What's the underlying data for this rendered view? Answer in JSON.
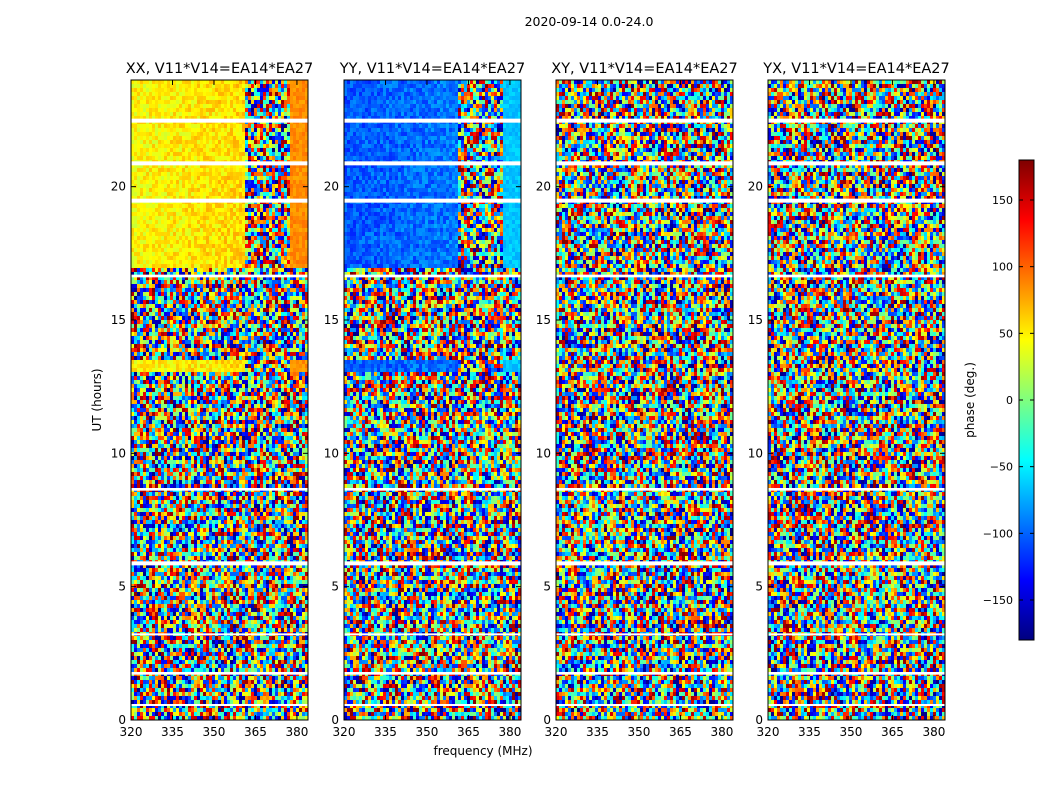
{
  "figure": {
    "suptitle": "2020-09-14 0.0-24.0"
  },
  "colors": {
    "blank": "#ffffff",
    "axis": "#000000",
    "colormap": [
      "#00007f",
      "#0000ff",
      "#007fff",
      "#00ffff",
      "#7fff7f",
      "#ffff00",
      "#ff7f00",
      "#ff0000",
      "#7f0000"
    ]
  },
  "chart_data": {
    "type": "heatmap",
    "xlabel": "frequency (MHz)",
    "ylabel": "UT (hours)",
    "xlim": [
      320,
      384
    ],
    "ylim": [
      0,
      24
    ],
    "x_ticks": [
      320,
      335,
      350,
      365,
      380
    ],
    "x_tick_labels": [
      "320",
      "335",
      "350",
      "365",
      "380"
    ],
    "y_ticks": [
      0,
      5,
      10,
      15,
      20
    ],
    "y_tick_labels": [
      "0",
      "5",
      "10",
      "15",
      "20"
    ],
    "panels": [
      {
        "title": "XX, V11*V14=EA14*EA27",
        "coherent_phase_deg": 45,
        "coherent_hours": [
          [
            17,
            24
          ],
          [
            13,
            13.5
          ]
        ]
      },
      {
        "title": "YY, V11*V14=EA14*EA27",
        "coherent_phase_deg": -105,
        "coherent_hours": [
          [
            17,
            24
          ],
          [
            13,
            13.5
          ]
        ]
      },
      {
        "title": "XY, V11*V14=EA14*EA27",
        "coherent_phase_deg": null,
        "coherent_hours": []
      },
      {
        "title": "YX, V11*V14=EA14*EA27",
        "coherent_phase_deg": null,
        "coherent_hours": []
      }
    ],
    "blank_hour_bands": [
      [
        5.8,
        5.95
      ],
      [
        8.6,
        8.7
      ],
      [
        20.8,
        20.95
      ],
      [
        19.4,
        19.55
      ],
      [
        16.6,
        16.7
      ],
      [
        1.7,
        1.8
      ],
      [
        0.55,
        0.6
      ],
      [
        3.2,
        3.25
      ],
      [
        22.4,
        22.55
      ]
    ],
    "colorbar": {
      "label": "phase (deg.)",
      "range": [
        -180,
        180
      ],
      "ticks": [
        150,
        100,
        50,
        0,
        -50,
        -100,
        -150
      ],
      "tick_labels": [
        "150",
        "100",
        "50",
        "0",
        "−50",
        "−100",
        "−150"
      ]
    }
  }
}
